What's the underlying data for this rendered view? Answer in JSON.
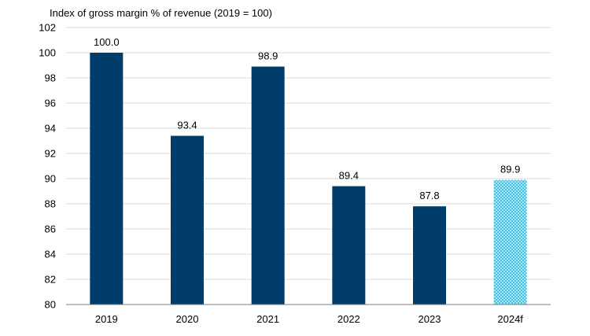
{
  "chart_data": {
    "type": "bar",
    "title": "",
    "ylabel": "Index of gross margin % of revenue (2019 = 100)",
    "xlabel": "",
    "categories": [
      "2019",
      "2020",
      "2021",
      "2022",
      "2023",
      "2024f"
    ],
    "values": [
      100.0,
      93.4,
      98.9,
      89.4,
      87.8,
      89.9
    ],
    "data_labels": [
      "100.0",
      "93.4",
      "98.9",
      "89.4",
      "87.8",
      "89.9"
    ],
    "forecast_index": 5,
    "ylim": [
      80,
      102
    ],
    "yticks": [
      80,
      82,
      84,
      86,
      88,
      90,
      92,
      94,
      96,
      98,
      100,
      102
    ],
    "grid": true,
    "legend": "none",
    "colors": {
      "bar": "#003d6b",
      "forecast": "#41c2e6",
      "grid": "#d9d9d9",
      "axis": "#7f7f7f",
      "text": "#000000"
    }
  }
}
